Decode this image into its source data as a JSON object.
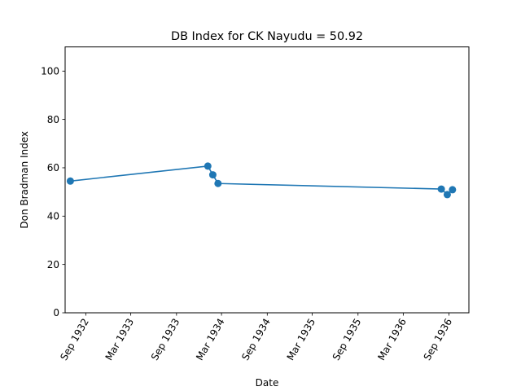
{
  "chart_data": {
    "type": "line",
    "title": "DB Index for CK Nayudu = 50.92",
    "xlabel": "Date",
    "ylabel": "Don Bradman Index",
    "xlim": [
      "1932-06-10",
      "1936-11-20"
    ],
    "ylim": [
      0,
      110
    ],
    "x_ticks": [
      {
        "date": "1932-09-01",
        "label": "Sep 1932"
      },
      {
        "date": "1933-03-01",
        "label": "Mar 1933"
      },
      {
        "date": "1933-09-01",
        "label": "Sep 1933"
      },
      {
        "date": "1934-03-01",
        "label": "Mar 1934"
      },
      {
        "date": "1934-09-01",
        "label": "Sep 1934"
      },
      {
        "date": "1935-03-01",
        "label": "Mar 1935"
      },
      {
        "date": "1935-09-01",
        "label": "Sep 1935"
      },
      {
        "date": "1936-03-01",
        "label": "Mar 1936"
      },
      {
        "date": "1936-09-01",
        "label": "Sep 1936"
      }
    ],
    "y_ticks": [
      0,
      20,
      40,
      60,
      80,
      100
    ],
    "grid": false,
    "series": [
      {
        "color": "#1f77b4",
        "x": [
          "1932-07-01",
          "1934-01-05",
          "1934-01-25",
          "1934-02-15",
          "1936-08-01",
          "1936-08-25",
          "1936-09-15"
        ],
        "y": [
          54.5,
          60.7,
          57.1,
          53.5,
          51.2,
          48.9,
          50.92
        ]
      }
    ]
  }
}
